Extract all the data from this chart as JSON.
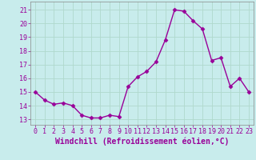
{
  "x": [
    0,
    1,
    2,
    3,
    4,
    5,
    6,
    7,
    8,
    9,
    10,
    11,
    12,
    13,
    14,
    15,
    16,
    17,
    18,
    19,
    20,
    21,
    22,
    23
  ],
  "y": [
    15.0,
    14.4,
    14.1,
    14.2,
    14.0,
    13.3,
    13.1,
    13.1,
    13.3,
    13.2,
    15.4,
    16.1,
    16.5,
    17.2,
    18.8,
    21.0,
    20.9,
    20.2,
    19.6,
    17.3,
    17.5,
    15.4,
    16.0,
    15.0
  ],
  "line_color": "#990099",
  "marker": "D",
  "markersize": 2.5,
  "linewidth": 1.0,
  "xlabel": "Windchill (Refroidissement éolien,°C)",
  "xlabel_fontsize": 7,
  "ylabel_ticks": [
    13,
    14,
    15,
    16,
    17,
    18,
    19,
    20,
    21
  ],
  "ylim": [
    12.6,
    21.6
  ],
  "xlim": [
    -0.5,
    23.5
  ],
  "xtick_labels": [
    "0",
    "1",
    "2",
    "3",
    "4",
    "5",
    "6",
    "7",
    "8",
    "9",
    "10",
    "11",
    "12",
    "13",
    "14",
    "15",
    "16",
    "17",
    "18",
    "19",
    "20",
    "21",
    "22",
    "23"
  ],
  "grid_color": "#b0d8cc",
  "bg_color": "#c8ecec",
  "tick_color": "#990099",
  "tick_fontsize": 6,
  "spine_color": "#888888"
}
